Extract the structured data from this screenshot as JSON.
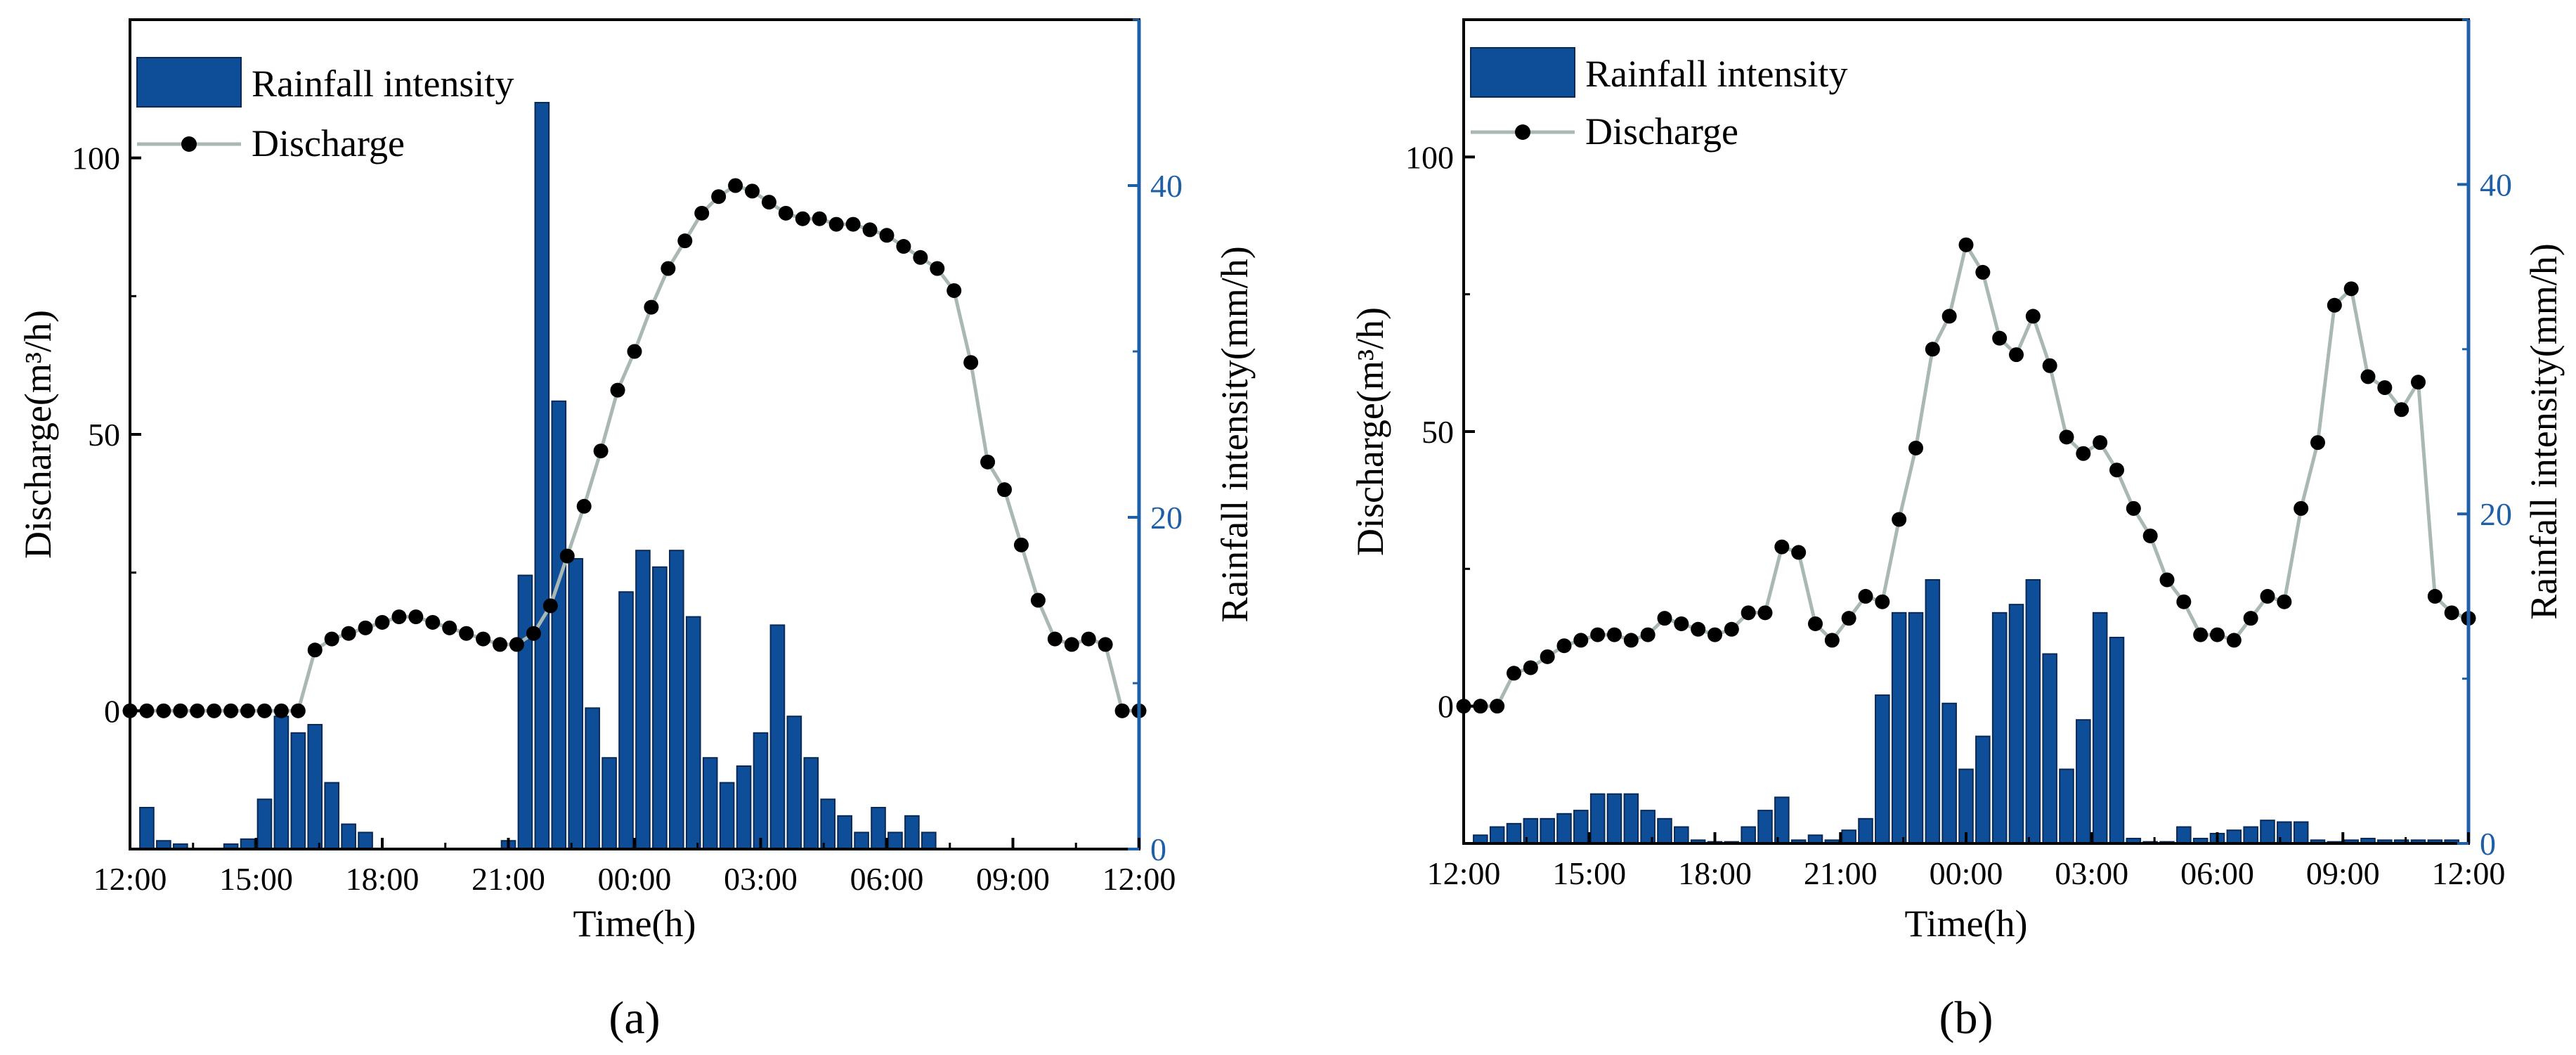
{
  "colors": {
    "bar": "#0e4e98",
    "bar_edge": "#0a2a55",
    "line": "#a9b8b5",
    "marker": "#000000",
    "right_axis": "#1f5fa8"
  },
  "chart_data": [
    {
      "id": "a",
      "panel_label": "(a)",
      "type": "bar+line",
      "xlabel": "Time(h)",
      "ylabel_left": "Discharge(m³/h)",
      "ylabel_right": "Rainfall intensity(mm/h)",
      "x_range_hours": [
        0,
        24
      ],
      "x_ticks": [
        0,
        3,
        6,
        9,
        12,
        15,
        18,
        21,
        24
      ],
      "x_tick_labels": [
        "12:00",
        "15:00",
        "18:00",
        "21:00",
        "00:00",
        "03:00",
        "06:00",
        "09:00",
        "12:00"
      ],
      "ylim_left": [
        -25,
        125
      ],
      "yticks_left": [
        0,
        50,
        100
      ],
      "yticks_left_labels": [
        "0",
        "50",
        "100"
      ],
      "ylim_right": [
        0,
        50
      ],
      "yticks_right": [
        0,
        20,
        40
      ],
      "yticks_right_labels": [
        "0",
        "20",
        "40"
      ],
      "legend": {
        "position": "top-left",
        "entries": [
          "Rainfall intensity",
          "Discharge"
        ]
      },
      "rainfall": {
        "name": "Rainfall intensity",
        "x": [
          0.4,
          0.8,
          1.2,
          2.4,
          2.8,
          3.2,
          3.6,
          4.0,
          4.4,
          4.8,
          5.2,
          5.6,
          6.0,
          9.0,
          9.4,
          9.8,
          10.2,
          10.6,
          11.0,
          11.4,
          11.8,
          12.2,
          12.6,
          13.0,
          13.4,
          13.8,
          14.2,
          14.6,
          15.0,
          15.4,
          15.8,
          16.2,
          16.6,
          17.0,
          17.4,
          17.8,
          18.2,
          18.6,
          19.0,
          19.4,
          19.8,
          20.2,
          20.6,
          21.0
        ],
        "values": [
          2.5,
          0.5,
          0.3,
          0.3,
          0.6,
          3.0,
          8.0,
          7.0,
          7.5,
          4.0,
          1.5,
          1.0,
          0.0,
          0.5,
          16.5,
          45.0,
          27.0,
          17.5,
          8.5,
          5.5,
          15.5,
          18.0,
          17.0,
          18.0,
          14.0,
          5.5,
          4.0,
          5.0,
          7.0,
          13.5,
          8.0,
          5.5,
          3.0,
          2.0,
          1.0,
          2.5,
          1.0,
          2.0,
          1.0,
          0.0,
          0.0,
          0.0,
          0.0,
          0.0
        ]
      },
      "discharge": {
        "name": "Discharge",
        "x": [
          0,
          0.4,
          0.8,
          1.2,
          1.6,
          2.0,
          2.4,
          2.8,
          3.2,
          3.6,
          4.0,
          4.4,
          4.8,
          5.2,
          5.6,
          6.0,
          6.4,
          6.8,
          7.2,
          7.6,
          8.0,
          8.4,
          8.8,
          9.2,
          9.6,
          10.0,
          10.4,
          10.8,
          11.2,
          11.6,
          12.0,
          12.4,
          12.8,
          13.2,
          13.6,
          14.0,
          14.4,
          14.8,
          15.2,
          15.6,
          16.0,
          16.4,
          16.8,
          17.2,
          17.6,
          18.0,
          18.4,
          18.8,
          19.2,
          19.6,
          20.0,
          20.4,
          20.8,
          21.2,
          21.6,
          22.0,
          22.4,
          22.8,
          23.2,
          23.6,
          24.0
        ],
        "values": [
          0,
          0,
          0,
          0,
          0,
          0,
          0,
          0,
          0,
          0,
          0,
          11,
          13,
          14,
          15,
          16,
          17,
          17,
          16,
          15,
          14,
          13,
          12,
          12,
          14,
          19,
          28,
          37,
          47,
          58,
          65,
          73,
          80,
          85,
          90,
          93,
          95,
          94,
          92,
          90,
          89,
          89,
          88,
          88,
          87,
          86,
          84,
          82,
          80,
          76,
          63,
          45,
          40,
          30,
          20,
          13,
          12,
          13,
          12,
          0,
          0
        ]
      }
    },
    {
      "id": "b",
      "panel_label": "(b)",
      "type": "bar+line",
      "xlabel": "Time(h)",
      "ylabel_left": "Discharge(m³/h)",
      "ylabel_right": "Rainfall intensity(mm/h)",
      "x_range_hours": [
        0,
        24
      ],
      "x_ticks": [
        0,
        3,
        6,
        9,
        12,
        15,
        18,
        21,
        24
      ],
      "x_tick_labels": [
        "12:00",
        "15:00",
        "18:00",
        "21:00",
        "00:00",
        "03:00",
        "06:00",
        "09:00",
        "12:00"
      ],
      "ylim_left": [
        -25,
        125
      ],
      "yticks_left": [
        0,
        50,
        100
      ],
      "yticks_left_labels": [
        "0",
        "50",
        "100"
      ],
      "ylim_right": [
        0,
        50
      ],
      "yticks_right": [
        0,
        20,
        40
      ],
      "yticks_right_labels": [
        "0",
        "20",
        "40"
      ],
      "legend": {
        "position": "top-left",
        "entries": [
          "Rainfall intensity",
          "Discharge"
        ]
      },
      "rainfall": {
        "name": "Rainfall intensity",
        "x": [
          0.4,
          0.8,
          1.2,
          1.6,
          2.0,
          2.4,
          2.8,
          3.2,
          3.6,
          4.0,
          4.4,
          4.8,
          5.2,
          5.6,
          6.0,
          6.4,
          6.8,
          7.2,
          7.6,
          8.0,
          8.4,
          8.8,
          9.2,
          9.6,
          10.0,
          10.4,
          10.8,
          11.2,
          11.6,
          12.0,
          12.4,
          12.8,
          13.2,
          13.6,
          14.0,
          14.4,
          14.8,
          15.2,
          15.6,
          16.0,
          16.4,
          16.8,
          17.2,
          17.6,
          18.0,
          18.4,
          18.8,
          19.2,
          19.6,
          20.0,
          20.4,
          20.8,
          21.2,
          21.6,
          22.0,
          22.4,
          22.8,
          23.2,
          23.6
        ],
        "values": [
          0.5,
          1.0,
          1.2,
          1.5,
          1.5,
          1.8,
          2.0,
          3.0,
          3.0,
          3.0,
          2.0,
          1.5,
          1.0,
          0.2,
          0.1,
          0.1,
          1.0,
          2.0,
          2.8,
          0.2,
          0.5,
          0.2,
          0.8,
          1.5,
          9.0,
          14.0,
          14.0,
          16.0,
          8.5,
          4.5,
          6.5,
          14.0,
          14.5,
          16.0,
          11.5,
          4.5,
          7.5,
          14.0,
          12.5,
          0.3,
          0.1,
          0.1,
          1.0,
          0.3,
          0.6,
          0.8,
          1.0,
          1.4,
          1.3,
          1.3,
          0.2,
          0.1,
          0.2,
          0.3,
          0.2,
          0.2,
          0.2,
          0.2,
          0.2
        ]
      },
      "discharge": {
        "name": "Discharge",
        "x": [
          0,
          0.4,
          0.8,
          1.2,
          1.6,
          2.0,
          2.4,
          2.8,
          3.2,
          3.6,
          4.0,
          4.4,
          4.8,
          5.2,
          5.6,
          6.0,
          6.4,
          6.8,
          7.2,
          7.6,
          8.0,
          8.4,
          8.8,
          9.2,
          9.6,
          10.0,
          10.4,
          10.8,
          11.2,
          11.6,
          12.0,
          12.4,
          12.8,
          13.2,
          13.6,
          14.0,
          14.4,
          14.8,
          15.2,
          15.6,
          16.0,
          16.4,
          16.8,
          17.2,
          17.6,
          18.0,
          18.4,
          18.8,
          19.2,
          19.6,
          20.0,
          20.4,
          20.8,
          21.2,
          21.6,
          22.0,
          22.4,
          22.8,
          23.2,
          23.6,
          24.0
        ],
        "values": [
          0,
          0,
          0,
          6,
          7,
          9,
          11,
          12,
          13,
          13,
          12,
          13,
          16,
          15,
          14,
          13,
          14,
          17,
          17,
          29,
          28,
          15,
          12,
          16,
          20,
          19,
          34,
          47,
          65,
          71,
          84,
          79,
          67,
          64,
          71,
          62,
          49,
          46,
          48,
          43,
          36,
          31,
          23,
          19,
          13,
          13,
          12,
          16,
          20,
          19,
          36,
          48,
          73,
          76,
          60,
          58,
          54,
          59,
          20,
          17,
          16
        ]
      }
    }
  ]
}
